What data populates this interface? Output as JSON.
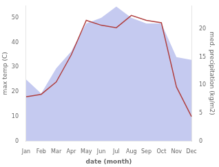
{
  "chart_data": {
    "type": "line",
    "categories": [
      "Jan",
      "Feb",
      "Mar",
      "Apr",
      "May",
      "Jun",
      "Jul",
      "Aug",
      "Sep",
      "Oct",
      "Nov",
      "Dec"
    ],
    "series": [
      {
        "type": "line",
        "color": "#b04040",
        "values": [
          18,
          19,
          24,
          35,
          49,
          47,
          46,
          51,
          49,
          48,
          22,
          10
        ]
      },
      {
        "type": "area",
        "color": "#c5caf0",
        "axis": "y2",
        "values": [
          11,
          8.5,
          13,
          16,
          21,
          22,
          24,
          22,
          21,
          21,
          15,
          14.5
        ]
      }
    ],
    "xlabel": "date (month)",
    "ylabel": "max temp (C)",
    "y2label": "med. precipitation (kg/m2)",
    "ylim": [
      0,
      55
    ],
    "yticks": [
      0,
      10,
      20,
      30,
      40,
      50
    ],
    "y2lim": [
      0,
      24.2
    ],
    "y2ticks": [
      0,
      5,
      10,
      15,
      20
    ],
    "grid": false
  }
}
